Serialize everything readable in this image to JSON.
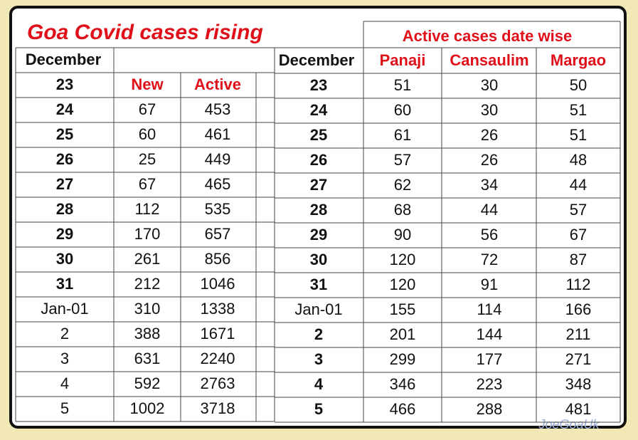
{
  "title": "Goa Covid cases rising",
  "left_table": {
    "header": "December",
    "first_label": "23",
    "columns": [
      "New",
      "Active"
    ],
    "rows": [
      [
        "24",
        67,
        453
      ],
      [
        "25",
        60,
        461
      ],
      [
        "26",
        25,
        449
      ],
      [
        "27",
        67,
        465
      ],
      [
        "28",
        112,
        535
      ],
      [
        "29",
        170,
        657
      ],
      [
        "30",
        261,
        856
      ],
      [
        "31",
        212,
        1046
      ],
      [
        "Jan-01",
        310,
        1338
      ],
      [
        "2",
        388,
        1671
      ],
      [
        "3",
        631,
        2240
      ],
      [
        "4",
        592,
        2763
      ],
      [
        "5",
        1002,
        3718
      ]
    ]
  },
  "right_table": {
    "caption": "Active cases date wise",
    "header": "December",
    "columns": [
      "Panaji",
      "Cansaulim",
      "Margao"
    ],
    "rows": [
      [
        "23",
        51,
        30,
        50
      ],
      [
        "24",
        60,
        30,
        51
      ],
      [
        "25",
        61,
        26,
        51
      ],
      [
        "26",
        57,
        26,
        48
      ],
      [
        "27",
        62,
        34,
        44
      ],
      [
        "28",
        68,
        44,
        57
      ],
      [
        "29",
        90,
        56,
        67
      ],
      [
        "30",
        120,
        72,
        87
      ],
      [
        "31",
        120,
        91,
        112
      ],
      [
        "Jan-01",
        155,
        114,
        166
      ],
      [
        "2",
        201,
        144,
        211
      ],
      [
        "3",
        299,
        177,
        271
      ],
      [
        "4",
        346,
        223,
        348
      ],
      [
        "5",
        466,
        288,
        481
      ]
    ]
  },
  "watermark": "JoeGoaUk"
}
